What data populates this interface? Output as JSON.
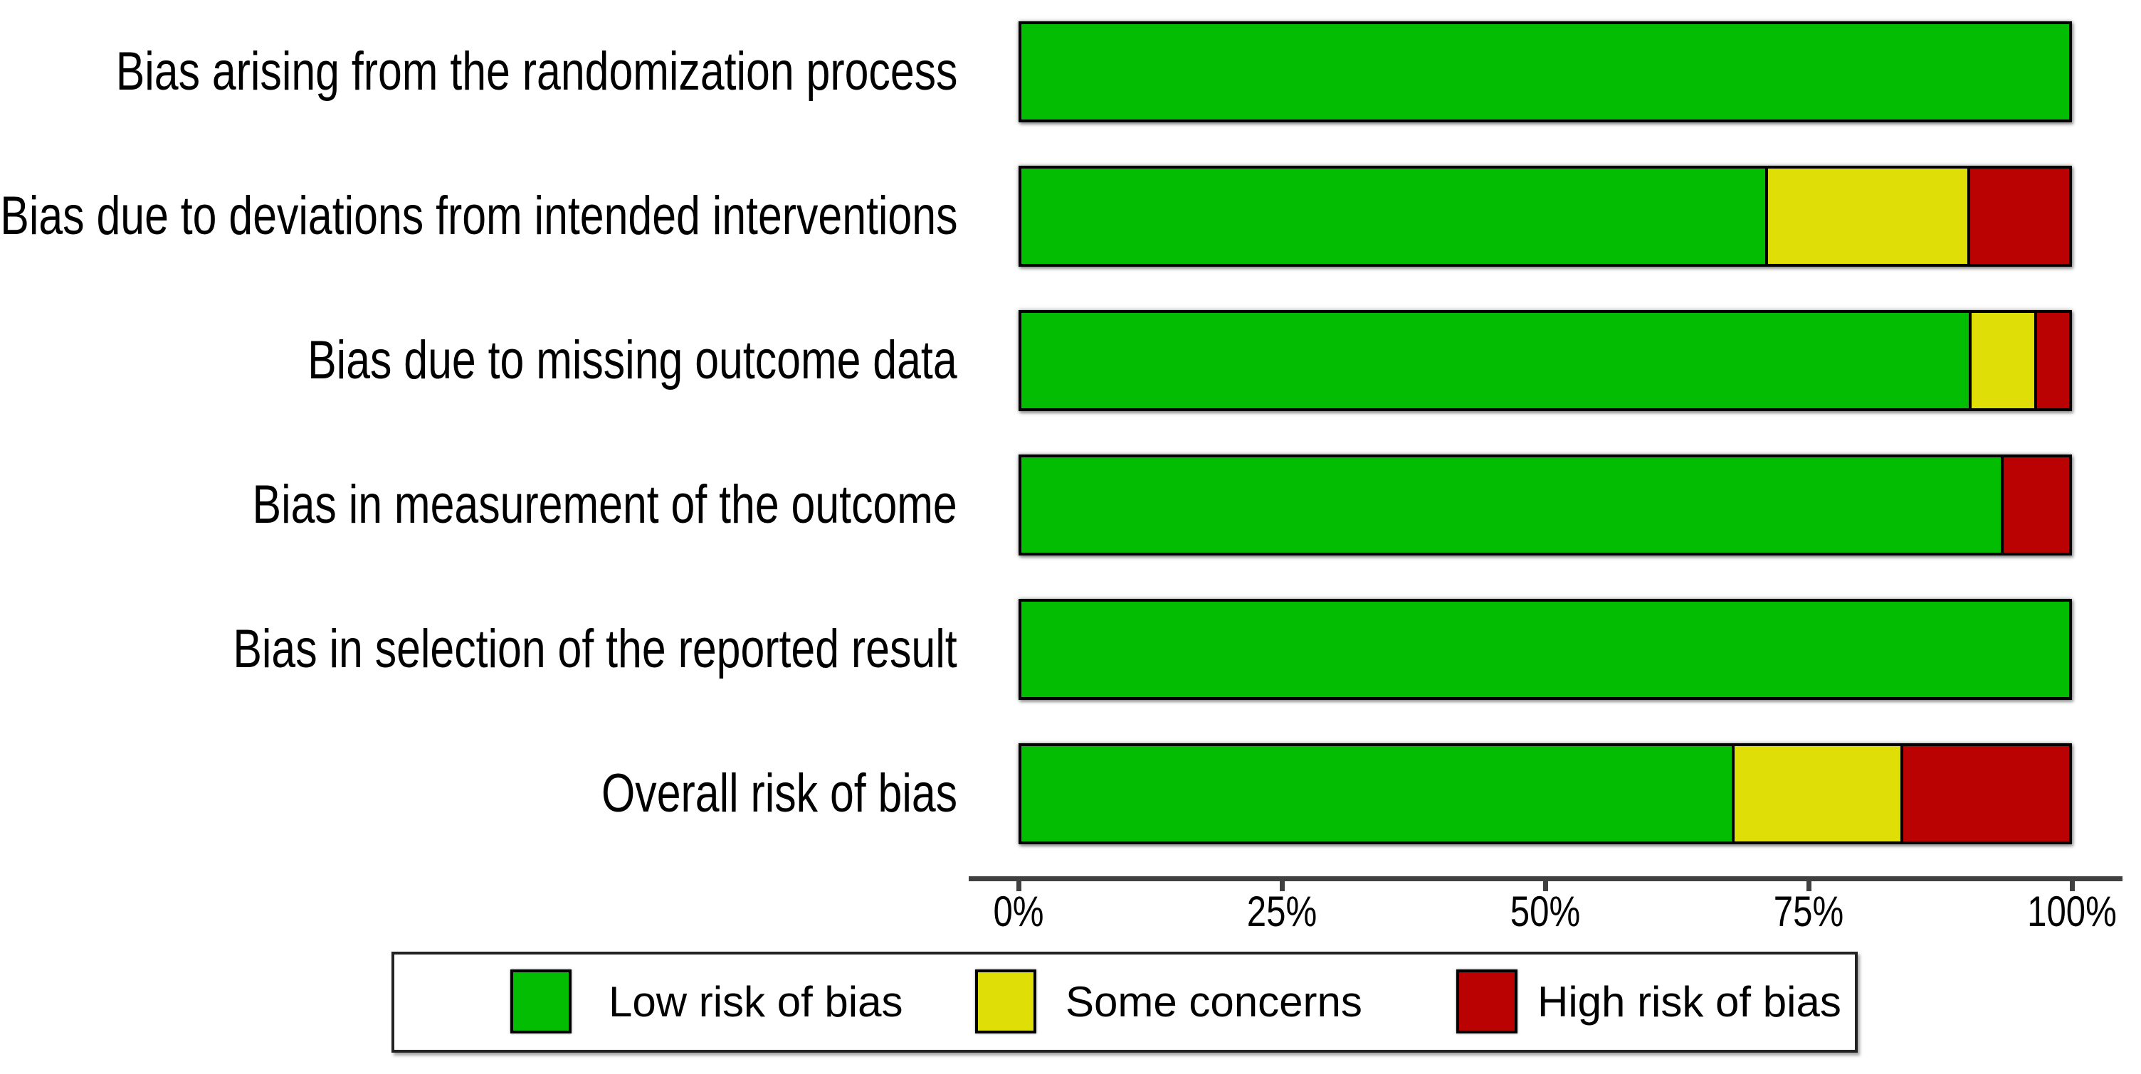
{
  "chart_data": {
    "type": "bar",
    "orientation": "horizontal",
    "stacked": true,
    "unit": "percent",
    "title": "",
    "xlabel": "",
    "ylabel": "",
    "categories": [
      "Bias arising from the randomization process",
      "Bias due to deviations from intended interventions",
      "Bias due to missing outcome data",
      "Bias in measurement of the outcome",
      "Bias in selection of the reported result",
      "Overall risk of bias"
    ],
    "series": [
      {
        "key": "low",
        "name": "Low risk of bias",
        "color": "#02BD02",
        "values": [
          100,
          71.0,
          90.4,
          93.5,
          100,
          67.8
        ]
      },
      {
        "key": "some",
        "name": "Some concerns",
        "color": "#E0DE07",
        "values": [
          0,
          19.3,
          6.3,
          0,
          0,
          16.1
        ]
      },
      {
        "key": "high",
        "name": "High risk of bias",
        "color": "#BB0202",
        "values": [
          0,
          9.7,
          3.3,
          6.5,
          0,
          16.1
        ]
      }
    ],
    "x_ticks": [
      "0%",
      "25%",
      "50%",
      "75%",
      "100%"
    ],
    "xlim": [
      0,
      100
    ],
    "grid": false,
    "legend_position": "bottom"
  },
  "colors": {
    "bar_border": "#000000",
    "axis": "#404040",
    "text": "#000000",
    "legend_border": "#222222",
    "background": "#ffffff"
  }
}
